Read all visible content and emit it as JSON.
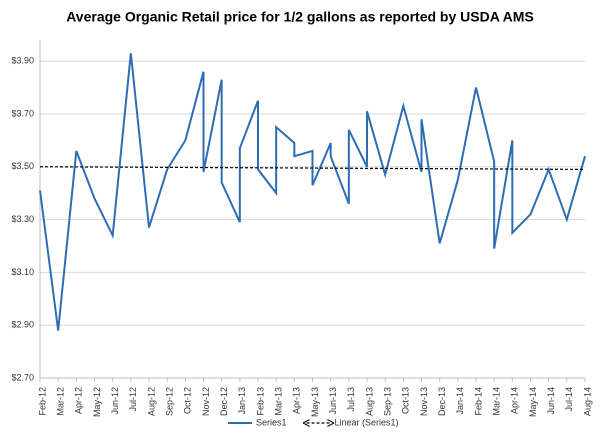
{
  "chart_data": {
    "type": "line",
    "title": "Average Organic Retail price for 1/2 gallons as reported by USDA AMS",
    "categories": [
      "Feb-12",
      "Mar-12",
      "Apr-12",
      "May-12",
      "Jun-12",
      "Jul-12",
      "Aug-12",
      "Sep-12",
      "Oct-12",
      "Nov-12",
      "Dec-12",
      "Jan-13",
      "Feb-13",
      "Mar-13",
      "Apr-13",
      "May-13",
      "Jun-13",
      "Jul-13",
      "Aug-13",
      "Sep-13",
      "Oct-13",
      "Nov-13",
      "Dec-13",
      "Jan-14",
      "Feb-14",
      "Mar-14",
      "Apr-14",
      "May-14",
      "Jun-14",
      "Jul-14",
      "Aug-14"
    ],
    "series": [
      {
        "name": "Series1",
        "color": "#2e6db4",
        "x": [
          "Feb-12",
          "Mar-12",
          "Apr-12",
          "May-12",
          "Jun-12",
          "Jul-12",
          "Aug-12",
          "Sep-12",
          "Oct-12",
          "Nov-12",
          "Nov-12",
          "Dec-12",
          "Dec-12",
          "Jan-13",
          "Jan-13",
          "Feb-13",
          "Feb-13",
          "Mar-13",
          "Mar-13",
          "Apr-13",
          "Apr-13",
          "May-13",
          "May-13",
          "Jun-13",
          "Jun-13",
          "Jul-13",
          "Jul-13",
          "Aug-13",
          "Aug-13",
          "Sep-13",
          "Oct-13",
          "Nov-13",
          "Nov-13",
          "Dec-13",
          "Jan-14",
          "Feb-14",
          "Mar-14",
          "Mar-14",
          "Apr-14",
          "Apr-14",
          "May-14",
          "Jun-14",
          "Jul-14",
          "Aug-14"
        ],
        "values": [
          3.41,
          2.88,
          3.56,
          3.38,
          3.24,
          3.93,
          3.27,
          3.49,
          3.6,
          3.86,
          3.48,
          3.83,
          3.44,
          3.29,
          3.57,
          3.75,
          3.49,
          3.4,
          3.65,
          3.59,
          3.54,
          3.56,
          3.43,
          3.59,
          3.54,
          3.36,
          3.64,
          3.5,
          3.71,
          3.47,
          3.73,
          3.48,
          3.68,
          3.21,
          3.45,
          3.8,
          3.52,
          3.19,
          3.6,
          3.25,
          3.32,
          3.49,
          3.3,
          3.54
        ]
      },
      {
        "name": "Linear (Series1)",
        "color": "#000000",
        "dashed": true,
        "x": [
          "Feb-12",
          "Aug-14"
        ],
        "values": [
          3.5,
          3.49
        ]
      }
    ],
    "ylim": [
      2.7,
      3.98
    ],
    "yticks": [
      {
        "value": 2.7,
        "label": "$2.70"
      },
      {
        "value": 2.9,
        "label": "$2.90"
      },
      {
        "value": 3.1,
        "label": "$3.10"
      },
      {
        "value": 3.3,
        "label": "$3.30"
      },
      {
        "value": 3.5,
        "label": "$3.50"
      },
      {
        "value": 3.7,
        "label": "$3.70"
      },
      {
        "value": 3.9,
        "label": "$3.90"
      }
    ],
    "grid": true,
    "legend": "bottom"
  }
}
